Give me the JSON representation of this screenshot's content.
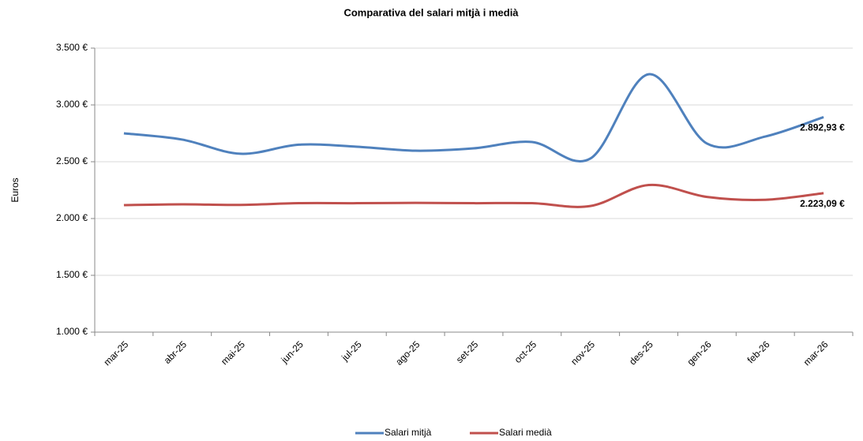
{
  "chart_data": {
    "type": "line",
    "title": "Comparativa del salari mitjà i medià",
    "y_label": "Euros",
    "categories": [
      "mar-25",
      "abr-25",
      "mai-25",
      "jun-25",
      "jul-25",
      "ago-25",
      "set-25",
      "oct-25",
      "nov-25",
      "des-25",
      "gen-26",
      "feb-26",
      "mar-26"
    ],
    "series": [
      {
        "name": "Salari mitjà",
        "color": "#4f81bd",
        "values": [
          2750,
          2695,
          2570,
          2650,
          2632,
          2597,
          2618,
          2674,
          2528,
          3270,
          2660,
          2722,
          2892.93
        ],
        "value_labels": [
          null,
          null,
          null,
          null,
          null,
          null,
          null,
          null,
          null,
          null,
          null,
          null,
          "2.892,93 €"
        ]
      },
      {
        "name": "Salari medià",
        "color": "#c0504d",
        "values": [
          2118,
          2125,
          2120,
          2135,
          2135,
          2138,
          2135,
          2135,
          2110,
          2295,
          2190,
          2165,
          2223.09
        ],
        "value_labels": [
          null,
          null,
          null,
          null,
          null,
          null,
          null,
          null,
          null,
          null,
          null,
          null,
          "2.223,09 €"
        ]
      }
    ],
    "ylim": [
      1000,
      3500
    ],
    "yticks": [
      {
        "value": 1000,
        "label": "1.000 €"
      },
      {
        "value": 1500,
        "label": "1.500 €"
      },
      {
        "value": 2000,
        "label": "2.000 €"
      },
      {
        "value": 2500,
        "label": "2.500 €"
      },
      {
        "value": 3000,
        "label": "3.000 €"
      },
      {
        "value": 3500,
        "label": "3.500 €"
      }
    ],
    "grid": true,
    "legend": "bottom"
  }
}
